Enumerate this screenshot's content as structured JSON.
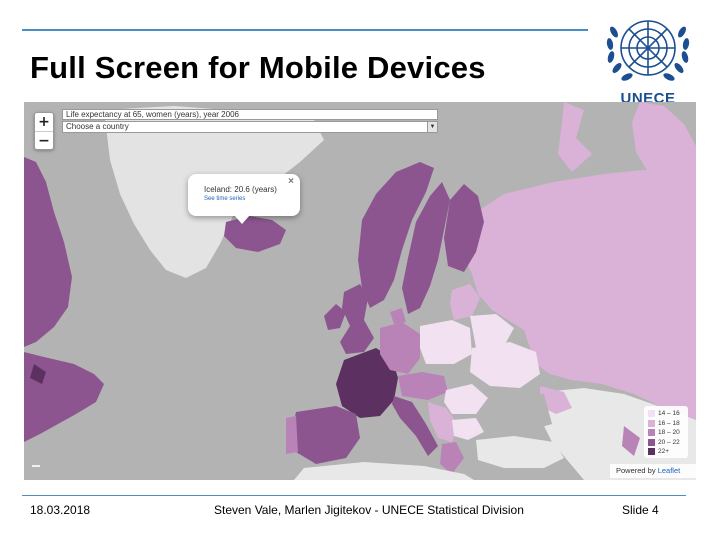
{
  "slide": {
    "title": "Full Screen for Mobile Devices"
  },
  "logo": {
    "text": "UNECE",
    "icon": "un-emblem-icon",
    "color": "#1b4f91"
  },
  "map": {
    "zoom_in_label": "+",
    "zoom_out_label": "−",
    "indicator_label": "Life expectancy at 65, women (years), year 2006",
    "country_select_label": "Choose a country",
    "popup": {
      "text": "Iceland: 20.6 (years)",
      "link": "See time series",
      "close_label": "×"
    },
    "legend": [
      {
        "label": "14 – 16",
        "color": "#f2e1f0"
      },
      {
        "label": "16 – 18",
        "color": "#dbb2d7"
      },
      {
        "label": "18 – 20",
        "color": "#b983b8"
      },
      {
        "label": "20 – 22",
        "color": "#8c558f"
      },
      {
        "label": "22+",
        "color": "#5c3060"
      }
    ],
    "attribution": {
      "prefix": "Powered by ",
      "link": "Leaflet"
    }
  },
  "footer": {
    "date": "18.03.2018",
    "authors": "Steven Vale, Marlen Jigitekov - UNECE Statistical Division",
    "slide_number": "Slide 4"
  }
}
